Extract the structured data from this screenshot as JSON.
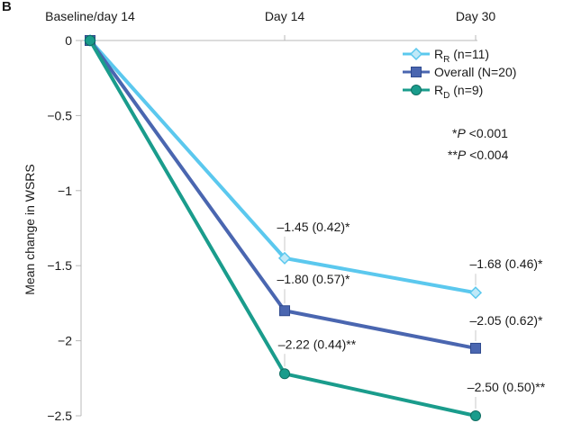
{
  "panel_letter": "B",
  "chart_data": {
    "type": "line",
    "categories": [
      "Baseline/day 14",
      "Day 14",
      "Day 30"
    ],
    "ylabel": "Mean change in WSRS",
    "xlabel": "",
    "ylim": [
      -2.5,
      0
    ],
    "y_ticks": [
      "0",
      "−0.5",
      "−1",
      "−1.5",
      "−2",
      "−2.5"
    ],
    "x_axis_position": "top",
    "grid": false,
    "legend_position": "top-right",
    "series": [
      {
        "key": "rr",
        "name_main": "R",
        "name_sub": "R",
        "name_rest": " (n=11)",
        "color": "#5bc8ee",
        "marker": "diamond",
        "values": [
          0,
          -1.45,
          -1.68
        ],
        "labels": [
          "",
          "–1.45 (0.42)*",
          "–1.68 (0.46)*"
        ]
      },
      {
        "key": "overall",
        "name_main": "Overall (N=20)",
        "name_sub": "",
        "name_rest": "",
        "color": "#4a66b0",
        "marker": "square",
        "values": [
          0,
          -1.8,
          -2.05
        ],
        "labels": [
          "",
          "–1.80 (0.57)*",
          "–2.05 (0.62)*"
        ]
      },
      {
        "key": "rd",
        "name_main": "R",
        "name_sub": "D",
        "name_rest": " (n=9)",
        "color": "#1a9c8c",
        "marker": "circle",
        "values": [
          0,
          -2.22,
          -2.5
        ],
        "labels": [
          "",
          "–2.22 (0.44)**",
          "–2.50 (0.50)**"
        ]
      }
    ],
    "annotations": [
      {
        "stars": "*",
        "italic": "P",
        "rest": " <0.001"
      },
      {
        "stars": "**",
        "italic": "P",
        "rest": " <0.004"
      }
    ]
  }
}
